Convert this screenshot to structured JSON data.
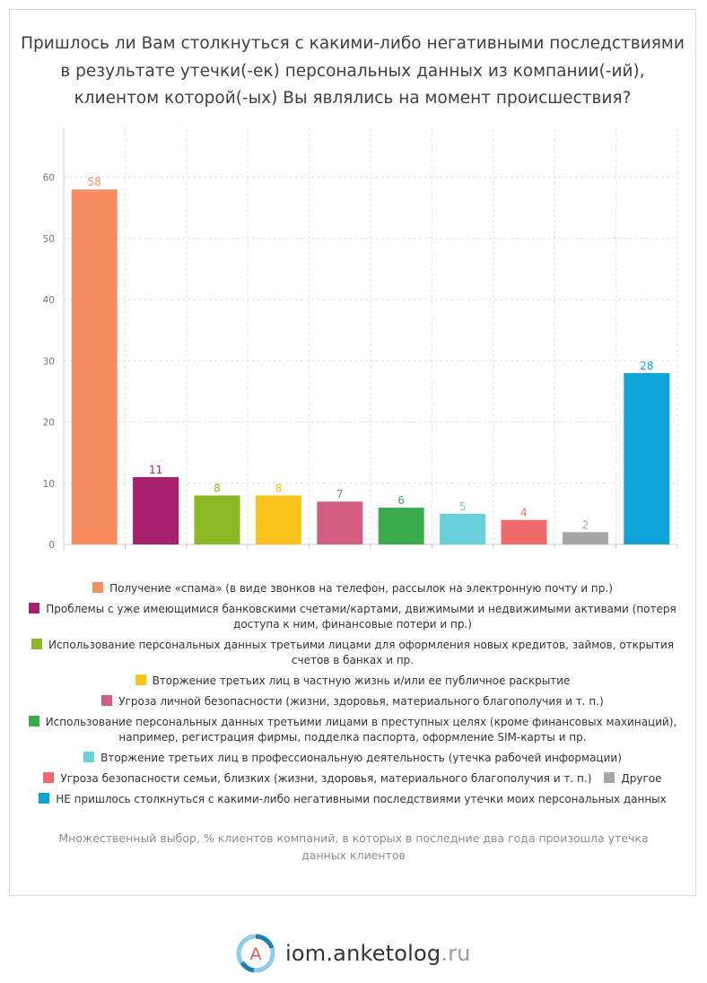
{
  "title": "Пришлось ли Вам столкнуться с какими-либо негативными последствиями в результате утечки(-ек) персональных данных из компании(-ий), клиентом которой(-ых) Вы являлись на момент происшествия?",
  "footnote": "Множественный выбор, % клиентов компаний, в которых в последние два года произошла утечка данных клиентов",
  "brand": {
    "name": "iom.anketolog",
    "tld": ".ru",
    "logo_letter": "A"
  },
  "chart_data": {
    "type": "bar",
    "ylim": [
      0,
      68
    ],
    "yticks": [
      0,
      10,
      20,
      30,
      40,
      50,
      60
    ],
    "grid": true,
    "legend_position": "bottom",
    "categories": [
      "Получение «спама» (в виде звонков на телефон, рассылок на электронную почту и пр.)",
      "Проблемы с уже имеющимися банковскими счетами/картами, движимыми и недвижимыми активами (потеря доступа к ним, финансовые потери и пр.)",
      "Использование персональных данных третьими лицами для оформления новых кредитов, займов, открытия счетов в банках и пр.",
      "Вторжение третьих лиц в частную жизнь и/или ее публичное раскрытие",
      "Угроза личной безопасности (жизни, здоровья, материального благополучия и т. п.)",
      "Использование персональных данных третьими лицами в преступных целях (кроме финансовых махинаций), например, регистрация фирмы, подделка паспорта, оформление SIM-карты и пр.",
      "Вторжение третьих лиц в профессиональную деятельность (утечка рабочей информации)",
      "Угроза безопасности семьи, близких (жизни, здоровья, материального благополучия и т. п.)",
      "Другое",
      "НЕ пришлось столкнуться с какими-либо негативными последствиями утечки моих персональных данных"
    ],
    "values": [
      58,
      11,
      8,
      8,
      7,
      6,
      5,
      4,
      2,
      28
    ],
    "colors": [
      "#f78c5e",
      "#a6206e",
      "#8cb923",
      "#f9c21d",
      "#d45e83",
      "#3aaa4d",
      "#67d0d9",
      "#f06a6b",
      "#a5a5a5",
      "#0ea3d7"
    ]
  },
  "legend": {
    "rows": [
      [
        {
          "label": "Получение «спама» (в виде звонков на телефон, рассылок на электронную почту и пр.)",
          "color": "#f78c5e"
        }
      ],
      [
        {
          "label": "Проблемы с уже имеющимися банковскими счетами/картами, движимыми и недвижимыми активами (потеря доступа к ним, финансовые потери и пр.)",
          "color": "#a6206e"
        }
      ],
      [
        {
          "label": "Использование персональных данных третьими лицами для оформления новых кредитов, займов, открытия счетов в банках и пр.",
          "color": "#8cb923"
        }
      ],
      [
        {
          "label": "Вторжение третьих лиц в частную жизнь и/или ее публичное раскрытие",
          "color": "#f9c21d"
        }
      ],
      [
        {
          "label": "Угроза личной безопасности (жизни, здоровья, материального благополучия и т. п.)",
          "color": "#d45e83"
        }
      ],
      [
        {
          "label": "Использование персональных данных третьими лицами в преступных целях (кроме финансовых махинаций), например, регистрация фирмы, подделка паспорта, оформление SIM-карты и пр.",
          "color": "#3aaa4d"
        }
      ],
      [
        {
          "label": "Вторжение третьих лиц в профессиональную деятельность (утечка рабочей информации)",
          "color": "#67d0d9"
        }
      ],
      [
        {
          "label": "Угроза безопасности семьи, близких (жизни, здоровья, материального благополучия и т. п.)",
          "color": "#f06a6b"
        },
        {
          "label": "Другое",
          "color": "#a5a5a5"
        }
      ],
      [
        {
          "label": "НЕ пришлось столкнуться с какими-либо негативными последствиями утечки моих персональных данных",
          "color": "#0ea3d7"
        }
      ]
    ]
  }
}
